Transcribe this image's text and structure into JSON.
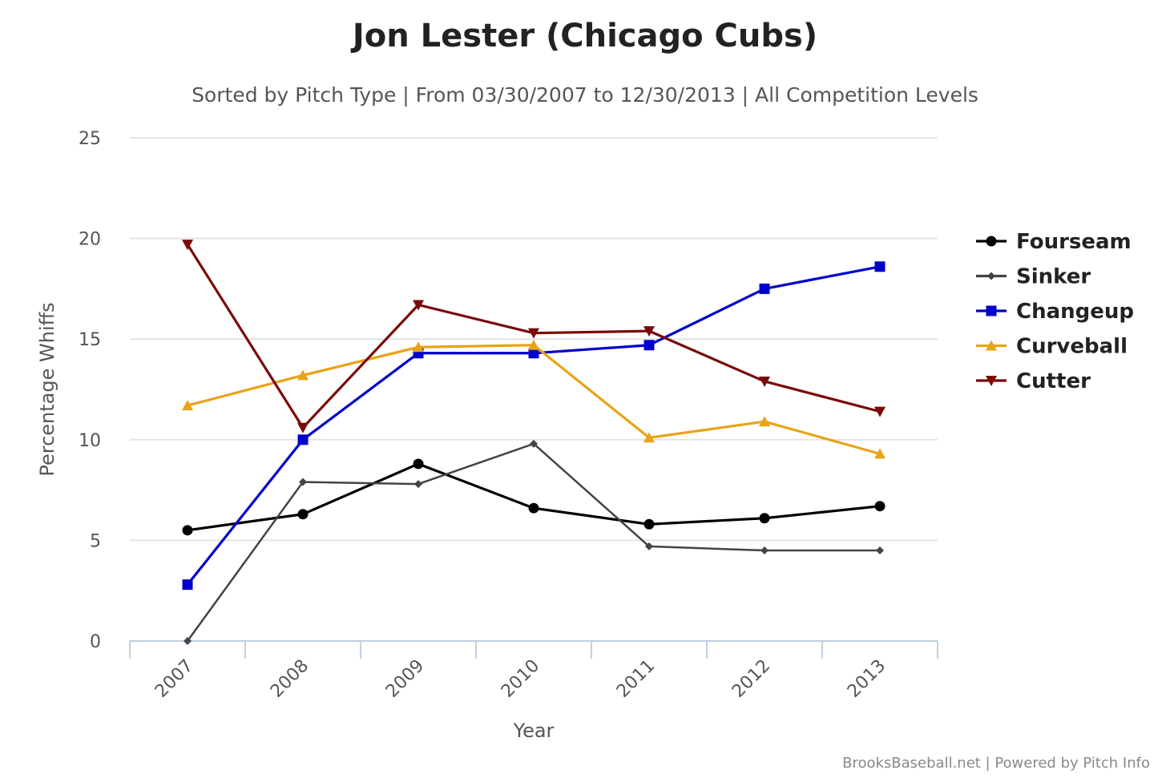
{
  "chart_data": {
    "type": "line",
    "title": "Jon Lester (Chicago Cubs)",
    "subtitle": "Sorted by Pitch Type | From 03/30/2007 to 12/30/2013 | All Competition Levels",
    "xlabel": "Year",
    "ylabel": "Percentage Whiffs",
    "categories": [
      "2007",
      "2008",
      "2009",
      "2010",
      "2011",
      "2012",
      "2013"
    ],
    "ylim": [
      0,
      25
    ],
    "yticks": [
      0,
      5,
      10,
      15,
      20,
      25
    ],
    "grid": true,
    "legend_position": "right",
    "series": [
      {
        "name": "Fourseam",
        "color": "#000000",
        "marker": "circle",
        "values": [
          5.5,
          6.3,
          8.8,
          6.6,
          5.8,
          6.1,
          6.7
        ]
      },
      {
        "name": "Sinker",
        "color": "#444444",
        "marker": "diamond",
        "values": [
          0.0,
          7.9,
          7.8,
          9.8,
          4.7,
          4.5,
          4.5
        ]
      },
      {
        "name": "Changeup",
        "color": "#0000CC",
        "marker": "square",
        "values": [
          2.8,
          10.0,
          14.3,
          14.3,
          14.7,
          17.5,
          18.6
        ]
      },
      {
        "name": "Curveball",
        "color": "#E8A317",
        "marker": "triangle",
        "values": [
          11.7,
          13.2,
          14.6,
          14.7,
          10.1,
          10.9,
          9.3
        ]
      },
      {
        "name": "Cutter",
        "color": "#7A0A0A",
        "marker": "triangle-down",
        "values": [
          19.7,
          10.6,
          16.7,
          15.3,
          15.4,
          12.9,
          11.4
        ]
      }
    ],
    "credits": "BrooksBaseball.net | Powered by Pitch Info"
  }
}
